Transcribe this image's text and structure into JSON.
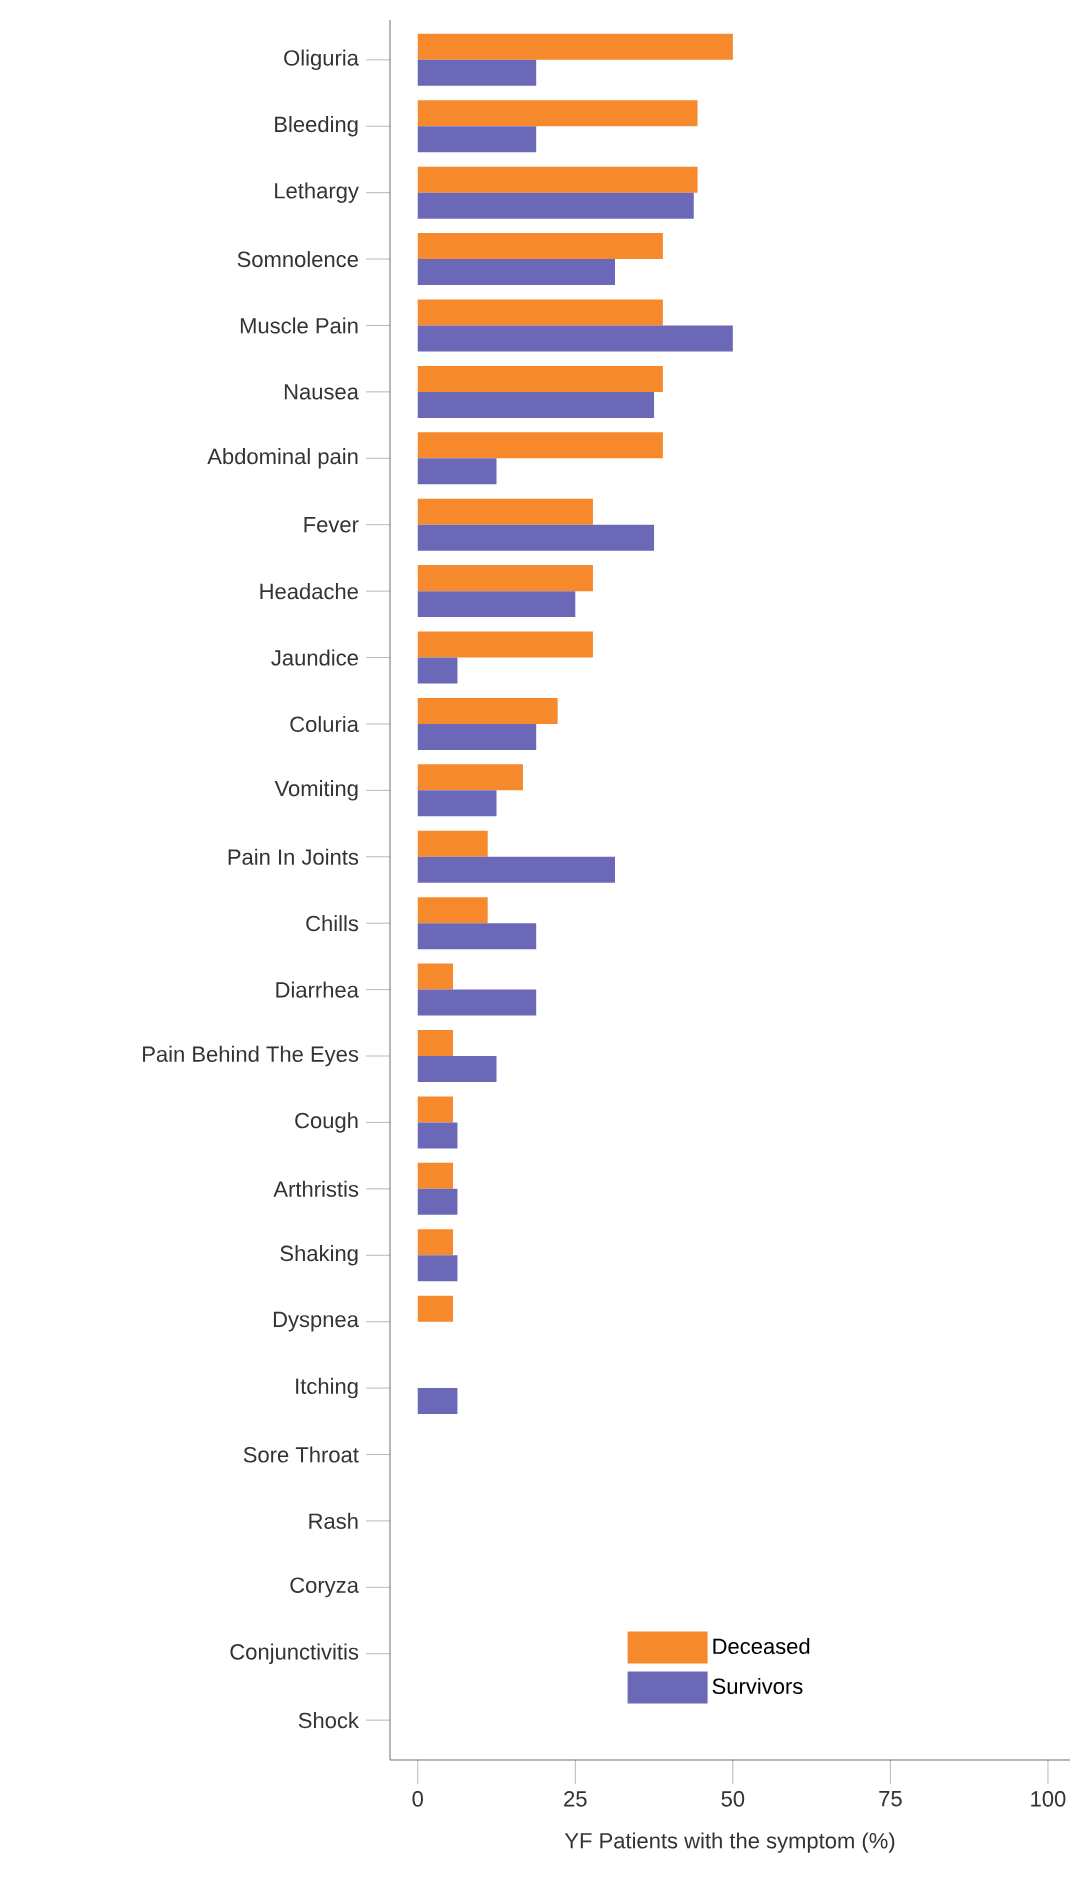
{
  "chart_data": {
    "type": "bar",
    "orientation": "horizontal",
    "xlabel": "YF Patients with the symptom (%)",
    "categories": [
      "Oliguria",
      "Bleeding",
      "Lethargy",
      "Somnolence",
      "Muscle Pain",
      "Nausea",
      "Abdominal pain",
      "Fever",
      "Headache",
      "Jaundice",
      "Coluria",
      "Vomiting",
      "Pain In Joints",
      "Chills",
      "Diarrhea",
      "Pain Behind The Eyes",
      "Cough",
      "Arthristis",
      "Shaking",
      "Dyspnea",
      "Itching",
      "Sore Throat",
      "Rash",
      "Coryza",
      "Conjunctivitis",
      "Shock"
    ],
    "series": [
      {
        "name": "Deceased",
        "color": "#f5892b",
        "values": [
          50,
          44.4,
          44.4,
          38.9,
          38.9,
          38.9,
          38.9,
          27.8,
          27.8,
          27.8,
          22.2,
          16.7,
          11.1,
          11.1,
          5.6,
          5.6,
          5.6,
          5.6,
          5.6,
          5.6,
          0,
          0,
          0,
          0,
          0,
          0
        ]
      },
      {
        "name": "Survivors",
        "color": "#6c68b8",
        "values": [
          18.8,
          18.8,
          43.8,
          31.3,
          50,
          37.5,
          12.5,
          37.5,
          25,
          6.3,
          18.8,
          12.5,
          31.3,
          18.8,
          18.8,
          12.5,
          6.3,
          6.3,
          6.3,
          0,
          6.3,
          0,
          0,
          0,
          0,
          0
        ]
      }
    ],
    "xlim": [
      -4.4,
      103.5
    ],
    "xticks": [
      0,
      25,
      50,
      75,
      100
    ],
    "legend": "bottom right"
  }
}
